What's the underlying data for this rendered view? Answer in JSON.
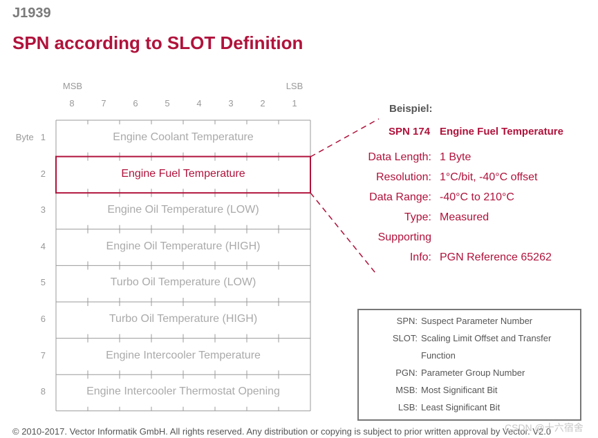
{
  "header": {
    "top_label": "J1939",
    "title": "SPN according to SLOT Definition"
  },
  "grid": {
    "msb_label": "MSB",
    "lsb_label": "LSB",
    "bit_numbers": [
      "8",
      "7",
      "6",
      "5",
      "4",
      "3",
      "2",
      "1"
    ],
    "byte_header": "Byte",
    "rows": [
      {
        "byte": "1",
        "label": "Engine Coolant Temperature",
        "highlighted": false
      },
      {
        "byte": "2",
        "label": "Engine Fuel Temperature",
        "highlighted": true
      },
      {
        "byte": "3",
        "label": "Engine Oil Temperature (LOW)",
        "highlighted": false
      },
      {
        "byte": "4",
        "label": "Engine Oil Temperature (HIGH)",
        "highlighted": false
      },
      {
        "byte": "5",
        "label": "Turbo Oil Temperature (LOW)",
        "highlighted": false
      },
      {
        "byte": "6",
        "label": "Turbo Oil Temperature (HIGH)",
        "highlighted": false
      },
      {
        "byte": "7",
        "label": "Engine Intercooler Temperature",
        "highlighted": false
      },
      {
        "byte": "8",
        "label": "Engine Intercooler Thermostat Opening",
        "highlighted": false
      }
    ]
  },
  "example": {
    "heading": "Beispiel:",
    "spn_id": "SPN 174",
    "spn_name": "Engine Fuel Temperature",
    "details": [
      {
        "label": "Data Length:",
        "value": "1 Byte"
      },
      {
        "label": "Resolution:",
        "value": "1°C/bit, -40°C offset"
      },
      {
        "label": "Data Range:",
        "value": "-40°C to 210°C"
      },
      {
        "label": "Type:",
        "value": "Measured"
      },
      {
        "label": "Supporting",
        "value": ""
      },
      {
        "label": "Info:",
        "value": "PGN Reference 65262"
      }
    ]
  },
  "legend": [
    {
      "key": "SPN:",
      "value": "Suspect Parameter Number"
    },
    {
      "key": "SLOT:",
      "value": "Scaling Limit Offset and Transfer"
    },
    {
      "key": "",
      "value": "Function"
    },
    {
      "key": "PGN:",
      "value": "Parameter Group Number"
    },
    {
      "key": "MSB:",
      "value": "Most Significant Bit"
    },
    {
      "key": "LSB:",
      "value": "Least Significant Bit"
    }
  ],
  "footer": "© 2010-2017. Vector Informatik GmbH. All rights reserved. Any distribution or copying is subject to prior written approval by Vector. V2.0",
  "watermark": "CSDN @十六宿舍",
  "colors": {
    "accent": "#b0123b",
    "grid": "#999999",
    "muted_text": "#aaaaaa"
  }
}
